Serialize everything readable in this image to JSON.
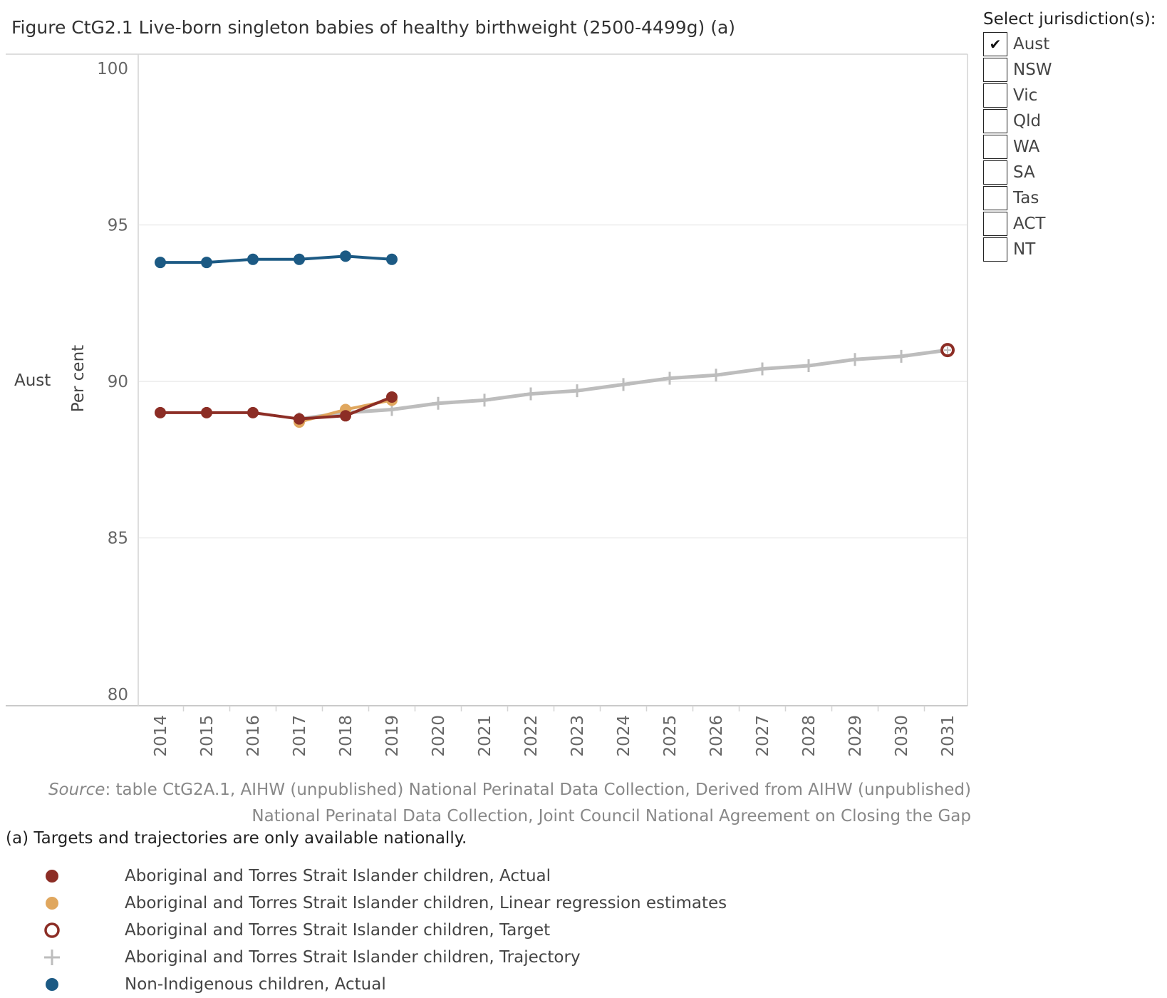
{
  "title": "Figure CtG2.1 Live-born singleton babies of healthy birthweight (2500-4499g) (a)",
  "jurisdiction_filter": {
    "heading": "Select jurisdiction(s):",
    "items": [
      {
        "label": "Aust",
        "checked": true
      },
      {
        "label": "NSW",
        "checked": false
      },
      {
        "label": "Vic",
        "checked": false
      },
      {
        "label": "Qld",
        "checked": false
      },
      {
        "label": "WA",
        "checked": false
      },
      {
        "label": "SA",
        "checked": false
      },
      {
        "label": "Tas",
        "checked": false
      },
      {
        "label": "ACT",
        "checked": false
      },
      {
        "label": "NT",
        "checked": false
      }
    ]
  },
  "chart_data": {
    "type": "line",
    "row_label": "Aust",
    "ylabel": "Per cent",
    "ylim": [
      80,
      100
    ],
    "yticks": [
      "100",
      "95",
      "90",
      "85",
      "80"
    ],
    "categories": [
      "2014",
      "2015",
      "2016",
      "2017",
      "2018",
      "2019",
      "2020",
      "2021",
      "2022",
      "2023",
      "2024",
      "2025",
      "2026",
      "2027",
      "2028",
      "2029",
      "2030",
      "2031"
    ],
    "grid": true,
    "series": [
      {
        "name": "Aboriginal and Torres Strait Islander children, Trajectory",
        "color": "#bdbdbd",
        "marker": "plus",
        "x": [
          "2017",
          "2018",
          "2019",
          "2020",
          "2021",
          "2022",
          "2023",
          "2024",
          "2025",
          "2026",
          "2027",
          "2028",
          "2029",
          "2030",
          "2031"
        ],
        "values": [
          88.8,
          89.0,
          89.1,
          89.3,
          89.4,
          89.6,
          89.7,
          89.9,
          90.1,
          90.2,
          90.4,
          90.5,
          90.7,
          90.8,
          91.0
        ]
      },
      {
        "name": "Aboriginal and Torres Strait Islander children, Linear regression estimates",
        "color": "#e0a75e",
        "marker": "dot",
        "x": [
          "2017",
          "2018",
          "2019"
        ],
        "values": [
          88.7,
          89.1,
          89.4
        ]
      },
      {
        "name": "Aboriginal and Torres Strait Islander children, Actual",
        "color": "#8c2d25",
        "marker": "dot",
        "x": [
          "2014",
          "2015",
          "2016",
          "2017",
          "2018",
          "2019"
        ],
        "values": [
          89.0,
          89.0,
          89.0,
          88.8,
          88.9,
          89.5
        ]
      },
      {
        "name": "Aboriginal and Torres Strait Islander children, Target",
        "color": "#8c2d25",
        "marker": "ring",
        "x": [
          "2031"
        ],
        "values": [
          91.0
        ]
      },
      {
        "name": "Non-Indigenous children, Actual",
        "color": "#1c5a84",
        "marker": "dot",
        "x": [
          "2014",
          "2015",
          "2016",
          "2017",
          "2018",
          "2019"
        ],
        "values": [
          93.8,
          93.8,
          93.9,
          93.9,
          94.0,
          93.9
        ]
      }
    ]
  },
  "source": {
    "label": "Source",
    "line1": ": table CtG2A.1, AIHW (unpublished) National Perinatal Data Collection, Derived from AIHW (unpublished)",
    "line2": "National Perinatal Data Collection, Joint Council National Agreement on Closing the Gap"
  },
  "note": "(a) Targets and trajectories are only available nationally.",
  "legend": [
    {
      "label": "Aboriginal and Torres Strait Islander children, Actual",
      "marker": "dot",
      "color": "#8c2d25"
    },
    {
      "label": "Aboriginal and Torres Strait Islander children, Linear regression estimates",
      "marker": "dot",
      "color": "#e0a75e"
    },
    {
      "label": "Aboriginal and Torres Strait Islander children, Target",
      "marker": "ring",
      "color": "#8c2d25"
    },
    {
      "label": "Aboriginal and Torres Strait Islander children, Trajectory",
      "marker": "plus",
      "color": "#bdbdbd"
    },
    {
      "label": "Non-Indigenous children, Actual",
      "marker": "dot",
      "color": "#1c5a84"
    }
  ]
}
